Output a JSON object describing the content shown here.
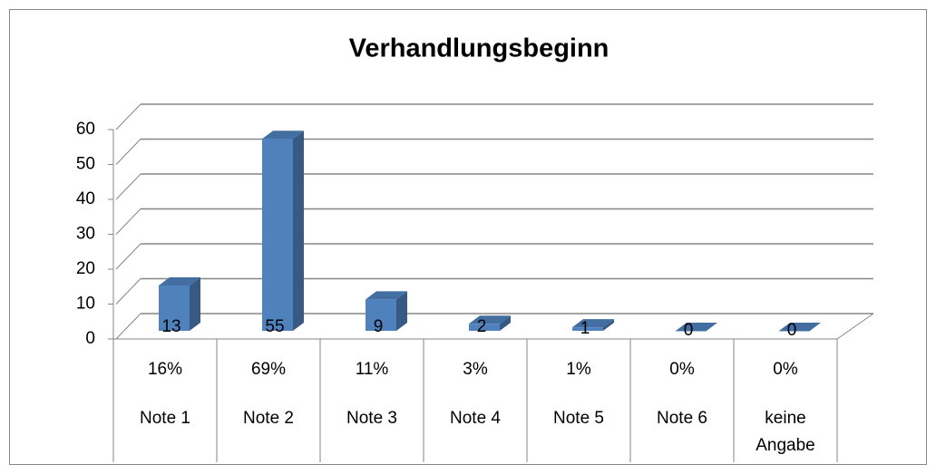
{
  "chart_data": {
    "type": "bar",
    "title": "Verhandlungsbeginn",
    "categories": [
      "Note 1",
      "Note 2",
      "Note 3",
      "Note 4",
      "Note 5",
      "Note 6",
      "keine Angabe"
    ],
    "values": [
      13,
      55,
      9,
      2,
      1,
      0,
      0
    ],
    "shares": [
      "16%",
      "69%",
      "11%",
      "3%",
      "1%",
      "0%",
      "0%"
    ],
    "color": "#4f81bd",
    "ylim": [
      0,
      60
    ],
    "yticks": [
      0,
      10,
      20,
      30,
      40,
      50,
      60
    ],
    "grid": true
  }
}
